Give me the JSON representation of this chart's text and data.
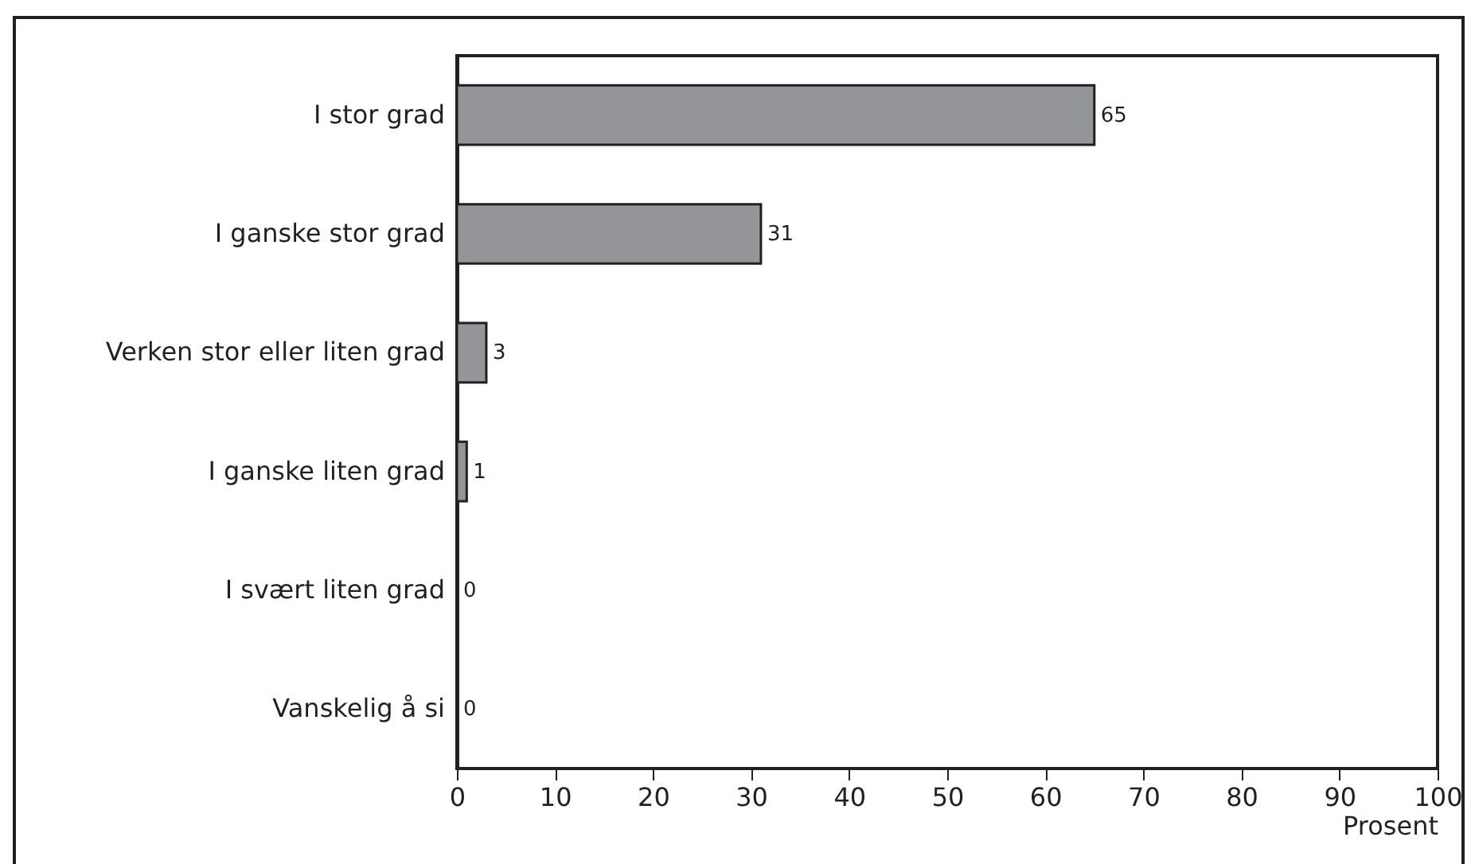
{
  "chart_data": {
    "type": "bar",
    "orientation": "horizontal",
    "xlabel": "Prosent",
    "categories": [
      "I stor grad",
      "I ganske stor grad",
      "Verken stor eller liten grad",
      "I ganske liten grad",
      "I svært liten grad",
      "Vanskelig å si"
    ],
    "values": [
      65,
      31,
      3,
      1,
      0,
      0
    ],
    "color": "#939598",
    "xlim": [
      0,
      100
    ],
    "xticks": [
      0,
      10,
      20,
      30,
      40,
      50,
      60,
      70,
      80,
      90,
      100
    ],
    "grid": false,
    "data_labels": true
  }
}
